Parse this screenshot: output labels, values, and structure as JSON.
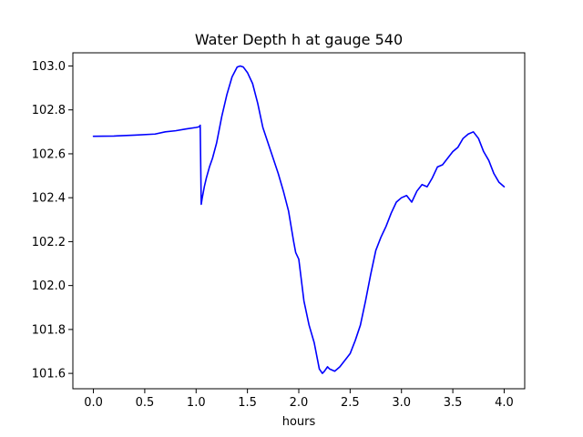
{
  "chart_data": {
    "type": "line",
    "title": "Water Depth h at gauge 540",
    "xlabel": "hours",
    "ylabel": "",
    "xlim": [
      -0.2,
      4.2
    ],
    "ylim": [
      101.53,
      103.06
    ],
    "xticks": [
      0.0,
      0.5,
      1.0,
      1.5,
      2.0,
      2.5,
      3.0,
      3.5,
      4.0
    ],
    "xtick_labels": [
      "0.0",
      "0.5",
      "1.0",
      "1.5",
      "2.0",
      "2.5",
      "3.0",
      "3.5",
      "4.0"
    ],
    "yticks": [
      101.6,
      101.8,
      102.0,
      102.2,
      102.4,
      102.6,
      102.8,
      103.0
    ],
    "ytick_labels": [
      "101.6",
      "101.8",
      "102.0",
      "102.2",
      "102.4",
      "102.6",
      "102.8",
      "103.0"
    ],
    "grid": false,
    "series": [
      {
        "color": "#0000ff",
        "x": [
          0.0,
          0.2,
          0.4,
          0.6,
          0.7,
          0.8,
          0.9,
          1.0,
          1.03,
          1.04,
          1.05,
          1.06,
          1.08,
          1.1,
          1.13,
          1.16,
          1.2,
          1.25,
          1.3,
          1.35,
          1.4,
          1.43,
          1.46,
          1.5,
          1.55,
          1.6,
          1.65,
          1.7,
          1.75,
          1.8,
          1.85,
          1.9,
          1.95,
          1.97,
          2.0,
          2.05,
          2.1,
          2.15,
          2.2,
          2.23,
          2.25,
          2.28,
          2.3,
          2.35,
          2.4,
          2.45,
          2.5,
          2.55,
          2.6,
          2.65,
          2.7,
          2.75,
          2.8,
          2.85,
          2.9,
          2.95,
          3.0,
          3.05,
          3.1,
          3.15,
          3.2,
          3.25,
          3.3,
          3.35,
          3.4,
          3.45,
          3.5,
          3.55,
          3.6,
          3.65,
          3.7,
          3.75,
          3.8,
          3.85,
          3.9,
          3.95,
          4.0
        ],
        "y": [
          102.68,
          102.681,
          102.685,
          102.69,
          102.7,
          102.705,
          102.713,
          102.72,
          102.723,
          102.73,
          102.37,
          102.4,
          102.45,
          102.49,
          102.54,
          102.58,
          102.65,
          102.77,
          102.87,
          102.95,
          102.995,
          103.0,
          102.995,
          102.97,
          102.92,
          102.83,
          102.72,
          102.65,
          102.58,
          102.51,
          102.43,
          102.34,
          102.2,
          102.15,
          102.12,
          101.93,
          101.82,
          101.74,
          101.62,
          101.6,
          101.61,
          101.63,
          101.62,
          101.61,
          101.63,
          101.66,
          101.69,
          101.75,
          101.82,
          101.93,
          102.05,
          102.16,
          102.22,
          102.27,
          102.33,
          102.38,
          102.4,
          102.41,
          102.38,
          102.43,
          102.46,
          102.45,
          102.49,
          102.54,
          102.55,
          102.58,
          102.61,
          102.63,
          102.67,
          102.69,
          102.7,
          102.67,
          102.61,
          102.57,
          102.51,
          102.47,
          102.45
        ]
      }
    ]
  }
}
